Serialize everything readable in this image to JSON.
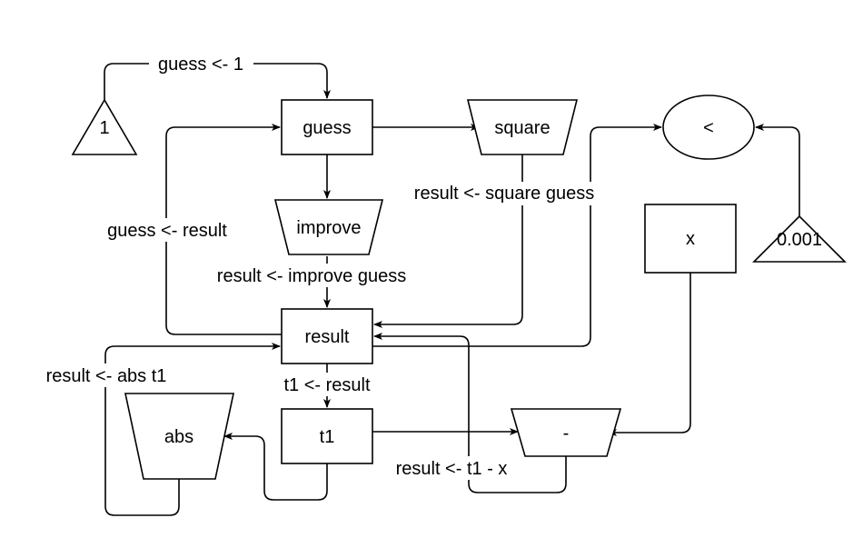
{
  "nodes": {
    "const_one": "1",
    "guess": "guess",
    "square": "square",
    "less_than": "<",
    "improve": "improve",
    "x": "x",
    "const_eps": "0.001",
    "result": "result",
    "abs": "abs",
    "t1": "t1",
    "minus": "-"
  },
  "edges": {
    "init_guess": "guess <- 1",
    "square_guess": "result  <- square guess",
    "guess_from_result": "guess <- result",
    "improve_guess": "result <- improve guess",
    "t1_from_result": "t1 <- result",
    "abs_t1": "result <- abs t1",
    "t1_minus_x": "result <- t1 - x"
  }
}
